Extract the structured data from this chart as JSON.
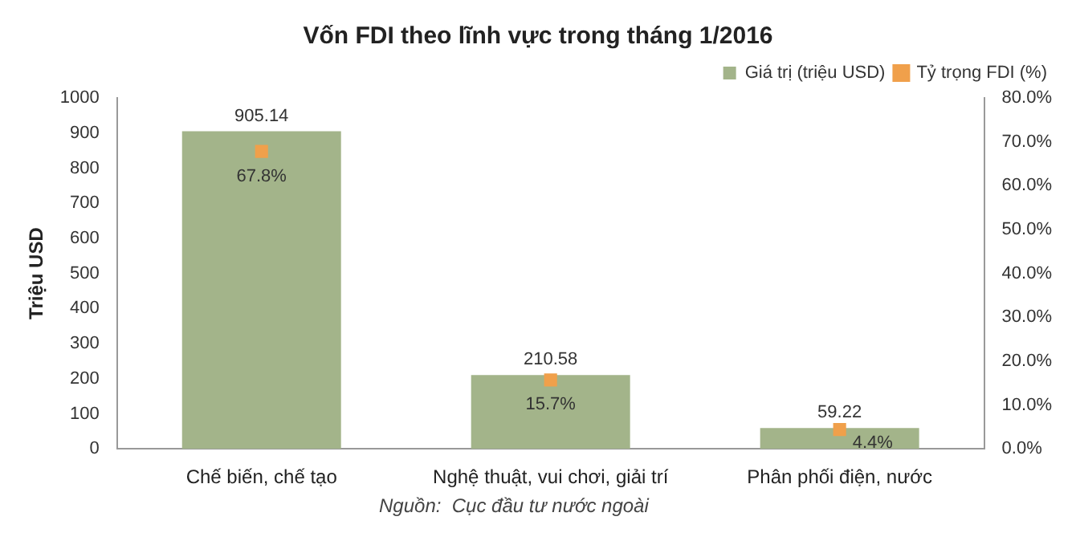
{
  "chart_data": {
    "type": "bar",
    "title": "Vốn FDI theo lĩnh vực trong tháng 1/2016",
    "ylabel": "Triệu USD",
    "annotations": [
      "Nguồn:  Cục đầu tư nước ngoài"
    ],
    "categories": [
      "Chế biến, chế tạo",
      "Nghệ thuật, vui chơi, giải trí",
      "Phân phối điện, nước"
    ],
    "series": [
      {
        "name": "Giá trị (triệu USD)",
        "color": "#a3b48a",
        "values": [
          905.14,
          210.58,
          59.22
        ],
        "value_labels": [
          "905.14",
          "210.58",
          "59.22"
        ]
      },
      {
        "name": "Tỷ trọng FDI (%)",
        "type": "scatter",
        "axis": "y2",
        "marker": "square",
        "color": "#f0a04b",
        "values": [
          67.8,
          15.7,
          4.4
        ],
        "value_labels": [
          "67.8%",
          "15.7%",
          "4.4%"
        ]
      }
    ],
    "ylim": [
      0,
      1000
    ],
    "yticks": [
      0,
      100,
      200,
      300,
      400,
      500,
      600,
      700,
      800,
      900,
      1000
    ],
    "y2lim": [
      0,
      80
    ],
    "y2ticks": [
      {
        "value": 0,
        "label": "0.0%"
      },
      {
        "value": 10,
        "label": "10.0%"
      },
      {
        "value": 20,
        "label": "20.0%"
      },
      {
        "value": 30,
        "label": "30.0%"
      },
      {
        "value": 40,
        "label": "40.0%"
      },
      {
        "value": 50,
        "label": "50.0%"
      },
      {
        "value": 60,
        "label": "60.0%"
      },
      {
        "value": 70,
        "label": "70.0%"
      },
      {
        "value": 80,
        "label": "80.0%"
      }
    ],
    "legend": "top right"
  }
}
